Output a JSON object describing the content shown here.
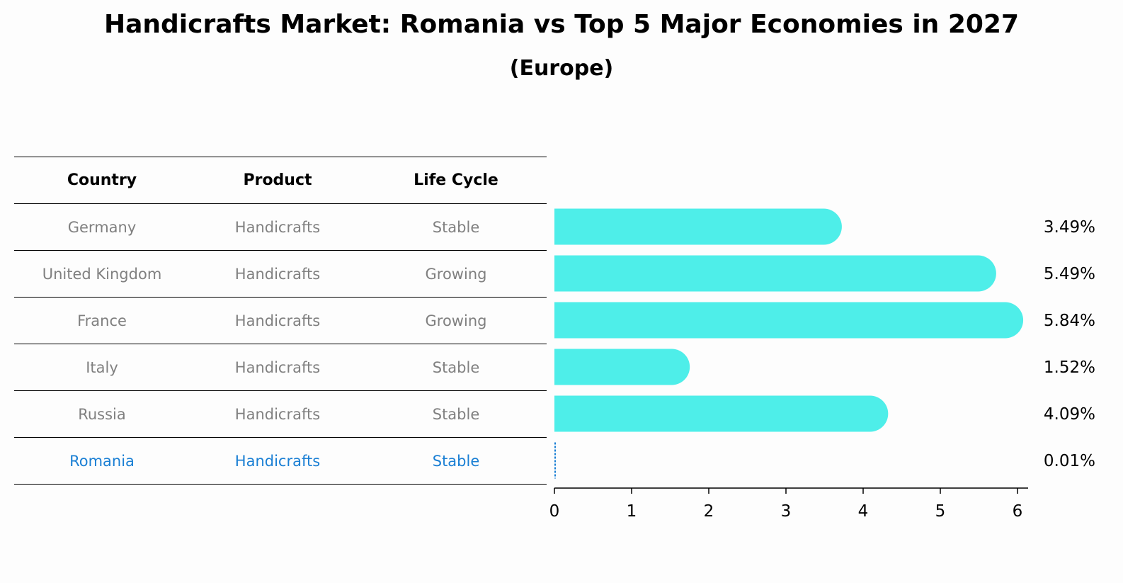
{
  "title": "Handicrafts Market: Romania vs Top 5 Major Economies in 2027",
  "subtitle": "(Europe)",
  "table": {
    "headers": [
      "Country",
      "Product",
      "Life Cycle"
    ],
    "rows": [
      {
        "country": "Germany",
        "product": "Handicrafts",
        "life_cycle": "Stable"
      },
      {
        "country": "United Kingdom",
        "product": "Handicrafts",
        "life_cycle": "Growing"
      },
      {
        "country": "France",
        "product": "Handicrafts",
        "life_cycle": "Growing"
      },
      {
        "country": "Italy",
        "product": "Handicrafts",
        "life_cycle": "Stable"
      },
      {
        "country": "Russia",
        "product": "Handicrafts",
        "life_cycle": "Stable"
      },
      {
        "country": "Romania",
        "product": "Handicrafts",
        "life_cycle": "Stable"
      }
    ]
  },
  "chart_data": {
    "type": "bar",
    "orientation": "horizontal",
    "categories": [
      "Germany",
      "United Kingdom",
      "France",
      "Italy",
      "Russia",
      "Romania"
    ],
    "values": [
      3.49,
      5.49,
      5.84,
      1.52,
      4.09,
      0.01
    ],
    "value_labels": [
      "3.49%",
      "5.49%",
      "5.84%",
      "1.52%",
      "4.09%",
      "0.01%"
    ],
    "xlim": [
      0,
      6
    ],
    "xticks": [
      "0",
      "1",
      "2",
      "3",
      "4",
      "5",
      "6"
    ],
    "grid": false,
    "bar_color": "#4eeee9",
    "highlight_color": "#1a7fd4",
    "highlight_category": "Romania"
  }
}
